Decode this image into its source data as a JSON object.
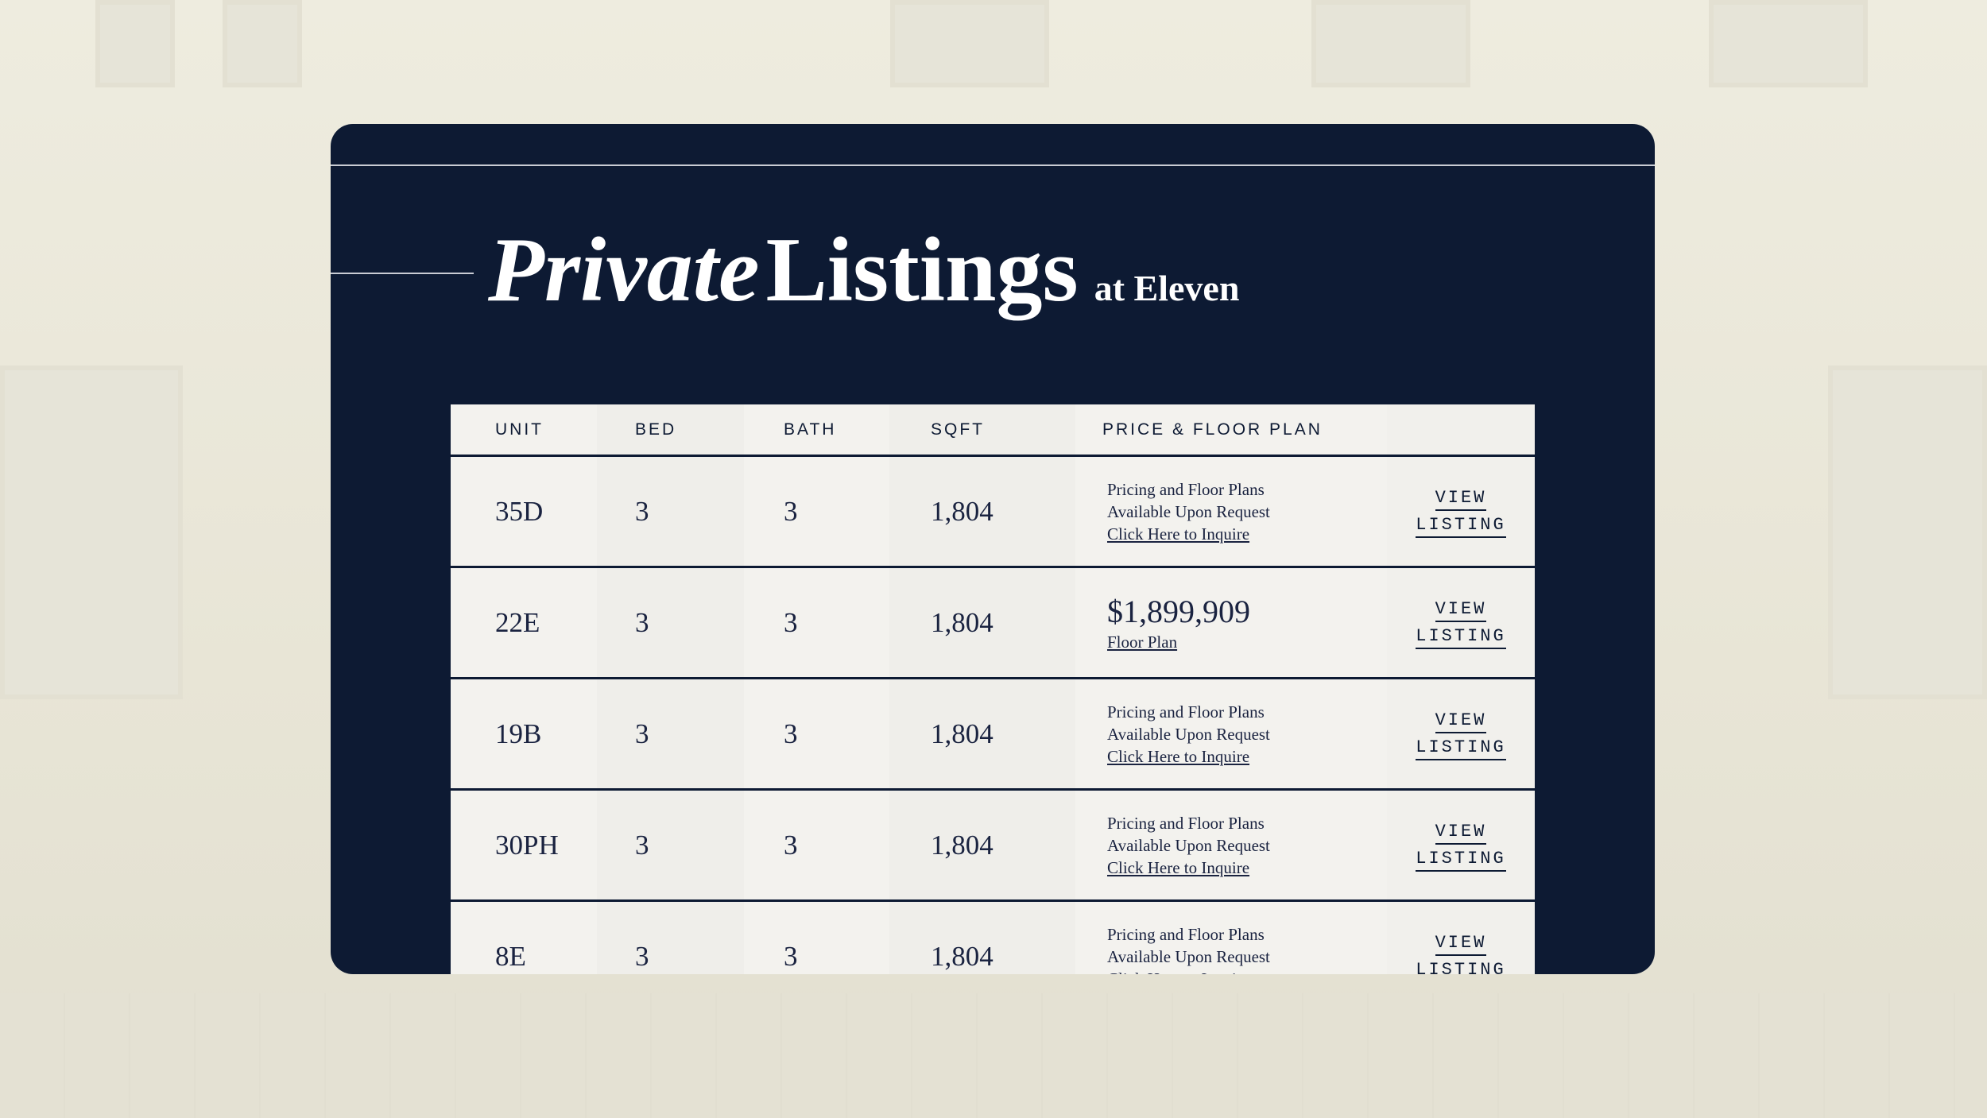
{
  "header": {
    "title_italic": "Private",
    "title_regular": "Listings",
    "title_suffix": "at Eleven"
  },
  "table": {
    "columns": [
      "UNIT",
      "BED",
      "BATH",
      "SQFT",
      "PRICE & FLOOR PLAN"
    ],
    "rows": [
      {
        "unit": "35D",
        "bed": "3",
        "bath": "3",
        "sqft": "1,804",
        "price_line1": "Pricing and Floor Plans",
        "price_line2": "Available Upon Request",
        "link": "Click Here to Inquire",
        "view1": "VIEW",
        "view2": "LISTING"
      },
      {
        "unit": "22E",
        "bed": "3",
        "bath": "3",
        "sqft": "1,804",
        "price": "$1,899,909",
        "link": "Floor Plan",
        "view1": "VIEW",
        "view2": "LISTING"
      },
      {
        "unit": "19B",
        "bed": "3",
        "bath": "3",
        "sqft": "1,804",
        "price_line1": "Pricing and Floor Plans",
        "price_line2": "Available Upon Request",
        "link": "Click Here to Inquire",
        "view1": "VIEW",
        "view2": "LISTING"
      },
      {
        "unit": "30PH",
        "bed": "3",
        "bath": "3",
        "sqft": "1,804",
        "price_line1": "Pricing and Floor Plans",
        "price_line2": "Available Upon Request",
        "link": "Click Here to Inquire",
        "view1": "VIEW",
        "view2": "LISTING"
      },
      {
        "unit": "8E",
        "bed": "3",
        "bath": "3",
        "sqft": "1,804",
        "price_line1": "Pricing and Floor Plans",
        "price_line2": "Available Upon Request",
        "link": "Click Here to Inquire",
        "view1": "VIEW",
        "view2": "LISTING"
      }
    ]
  },
  "colors": {
    "navy": "#0d1a33",
    "cream": "#f3f2ee",
    "background": "#e9e6d8"
  }
}
